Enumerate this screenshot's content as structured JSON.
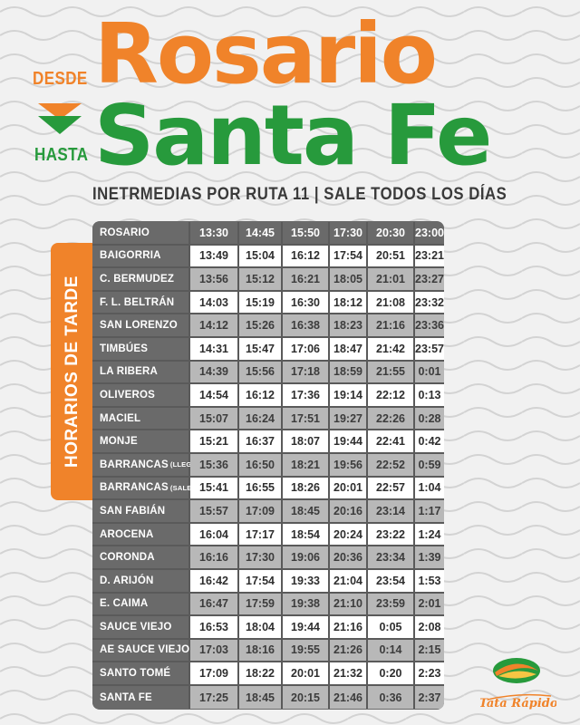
{
  "header": {
    "from_label": "DESDE",
    "to_label": "HASTA",
    "from_city": "Rosario",
    "to_city": "Santa Fe",
    "subtitle": "INETRMEDIAS POR RUTA 11 | SALE TODOS LOS DÍAS"
  },
  "side_tab": {
    "label": "HORARIOS DE TARDE"
  },
  "colors": {
    "orange": "#f0832a",
    "green": "#279a3c",
    "table_dark": "#6a6a6a"
  },
  "logo": {
    "text": "Tata Rápido"
  },
  "schedule": {
    "rows": [
      {
        "station": "ROSARIO",
        "note": "",
        "times": [
          "13:30",
          "14:45",
          "15:50",
          "17:30",
          "20:30",
          "23:00"
        ]
      },
      {
        "station": "BAIGORRIA",
        "note": "",
        "times": [
          "13:49",
          "15:04",
          "16:12",
          "17:54",
          "20:51",
          "23:21"
        ]
      },
      {
        "station": "C. BERMUDEZ",
        "note": "",
        "times": [
          "13:56",
          "15:12",
          "16:21",
          "18:05",
          "21:01",
          "23:27"
        ]
      },
      {
        "station": "F. L. BELTRÁN",
        "note": "",
        "times": [
          "14:03",
          "15:19",
          "16:30",
          "18:12",
          "21:08",
          "23:32"
        ]
      },
      {
        "station": "SAN LORENZO",
        "note": "",
        "times": [
          "14:12",
          "15:26",
          "16:38",
          "18:23",
          "21:16",
          "23:36"
        ]
      },
      {
        "station": "TIMBÚES",
        "note": "",
        "times": [
          "14:31",
          "15:47",
          "17:06",
          "18:47",
          "21:42",
          "23:57"
        ]
      },
      {
        "station": "LA RIBERA",
        "note": "",
        "times": [
          "14:39",
          "15:56",
          "17:18",
          "18:59",
          "21:55",
          "0:01"
        ]
      },
      {
        "station": "OLIVEROS",
        "note": "",
        "times": [
          "14:54",
          "16:12",
          "17:36",
          "19:14",
          "22:12",
          "0:13"
        ]
      },
      {
        "station": "MACIEL",
        "note": "",
        "times": [
          "15:07",
          "16:24",
          "17:51",
          "19:27",
          "22:26",
          "0:28"
        ]
      },
      {
        "station": "MONJE",
        "note": "",
        "times": [
          "15:21",
          "16:37",
          "18:07",
          "19:44",
          "22:41",
          "0:42"
        ]
      },
      {
        "station": "BARRANCAS",
        "note": "(LLEGA)",
        "times": [
          "15:36",
          "16:50",
          "18:21",
          "19:56",
          "22:52",
          "0:59"
        ]
      },
      {
        "station": "BARRANCAS",
        "note": "(SALE)",
        "times": [
          "15:41",
          "16:55",
          "18:26",
          "20:01",
          "22:57",
          "1:04"
        ]
      },
      {
        "station": "SAN FABIÁN",
        "note": "",
        "times": [
          "15:57",
          "17:09",
          "18:45",
          "20:16",
          "23:14",
          "1:17"
        ]
      },
      {
        "station": "AROCENA",
        "note": "",
        "times": [
          "16:04",
          "17:17",
          "18:54",
          "20:24",
          "23:22",
          "1:24"
        ]
      },
      {
        "station": "CORONDA",
        "note": "",
        "times": [
          "16:16",
          "17:30",
          "19:06",
          "20:36",
          "23:34",
          "1:39"
        ]
      },
      {
        "station": "D. ARIJÓN",
        "note": "",
        "times": [
          "16:42",
          "17:54",
          "19:33",
          "21:04",
          "23:54",
          "1:53"
        ]
      },
      {
        "station": "E. CAIMA",
        "note": "",
        "times": [
          "16:47",
          "17:59",
          "19:38",
          "21:10",
          "23:59",
          "2:01"
        ]
      },
      {
        "station": "SAUCE VIEJO",
        "note": "",
        "times": [
          "16:53",
          "18:04",
          "19:44",
          "21:16",
          "0:05",
          "2:08"
        ]
      },
      {
        "station": "AE SAUCE VIEJO",
        "note": "",
        "times": [
          "17:03",
          "18:16",
          "19:55",
          "21:26",
          "0:14",
          "2:15"
        ]
      },
      {
        "station": "SANTO TOMÉ",
        "note": "",
        "times": [
          "17:09",
          "18:22",
          "20:01",
          "21:32",
          "0:20",
          "2:23"
        ]
      },
      {
        "station": "SANTA FE",
        "note": "",
        "times": [
          "17:25",
          "18:45",
          "20:15",
          "21:46",
          "0:36",
          "2:37"
        ]
      }
    ]
  }
}
